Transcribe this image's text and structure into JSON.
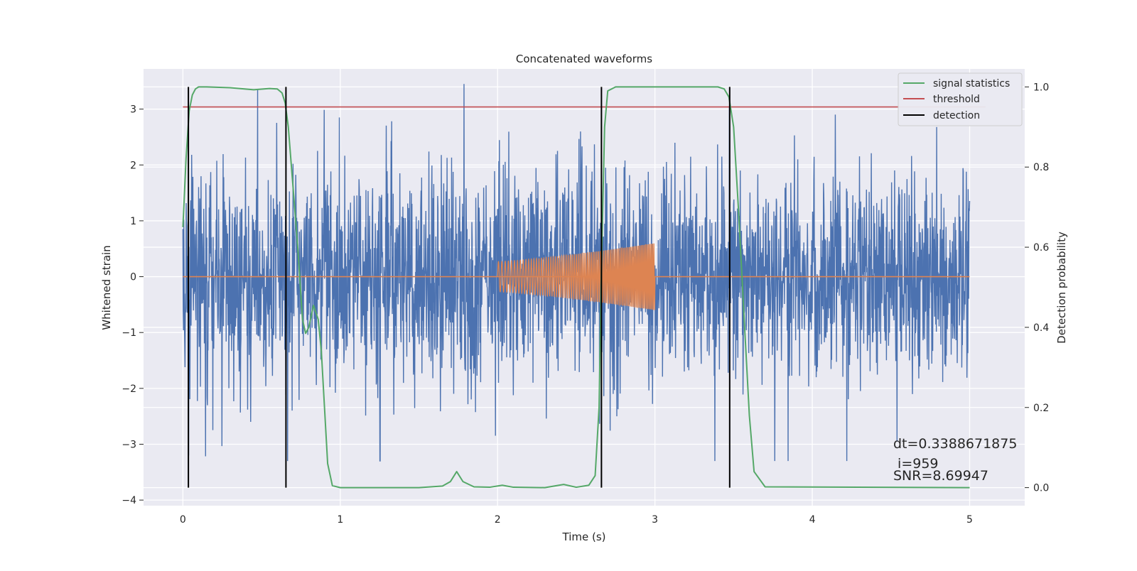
{
  "chart_data": {
    "type": "line",
    "title": "Concatenated waveforms",
    "xlabel": "Time (s)",
    "ylabel_left": "Whitened strain",
    "ylabel_right": "Detection probability",
    "xlim": [
      -0.25,
      5.35
    ],
    "ylim_left": [
      -4.1,
      3.72
    ],
    "ylim_right": [
      -0.045,
      1.045
    ],
    "xticks": [
      0,
      1,
      2,
      3,
      4,
      5
    ],
    "xtick_labels": [
      "0",
      "1",
      "2",
      "3",
      "4",
      "5"
    ],
    "yticks_left": [
      -4,
      -3,
      -2,
      -1,
      0,
      1,
      2,
      3
    ],
    "ytick_labels_left": [
      "−4",
      "−3",
      "−2",
      "−1",
      "0",
      "1",
      "2",
      "3"
    ],
    "yticks_right": [
      0.0,
      0.2,
      0.4,
      0.6,
      0.8,
      1.0
    ],
    "ytick_labels_right": [
      "0.0",
      "0.2",
      "0.4",
      "0.6",
      "0.8",
      "1.0"
    ],
    "grid": true,
    "legend_position": "top-right",
    "legend": [
      {
        "label": "signal statistics",
        "color": "#55a868"
      },
      {
        "label": "threshold",
        "color": "#c44e52"
      },
      {
        "label": "detection",
        "color": "#000000"
      }
    ],
    "series": [
      {
        "kind": "noise",
        "axis": "left",
        "color": "#4c72b0",
        "x_range": [
          0,
          5
        ],
        "typical_range": [
          -1.0,
          1.0
        ],
        "peak_range": [
          -3.3,
          3.45
        ]
      },
      {
        "kind": "injected_chirp",
        "axis": "left",
        "color": "#dd8452",
        "x_range": [
          2.0,
          3.0
        ],
        "amplitude_start": 0.27,
        "amplitude_end": 0.6,
        "flat_value": 0.0,
        "flat_range": [
          0,
          5
        ]
      },
      {
        "name": "signal statistics",
        "axis": "right",
        "color": "#55a868",
        "x": [
          0.0,
          0.02,
          0.04,
          0.06,
          0.08,
          0.1,
          0.15,
          0.3,
          0.45,
          0.55,
          0.6,
          0.63,
          0.65,
          0.67,
          0.7,
          0.73,
          0.76,
          0.78,
          0.8,
          0.83,
          0.86,
          0.88,
          0.9,
          0.92,
          0.95,
          1.0,
          1.5,
          1.65,
          1.7,
          1.74,
          1.78,
          1.85,
          1.95,
          2.03,
          2.1,
          2.3,
          2.42,
          2.5,
          2.58,
          2.62,
          2.645,
          2.66,
          2.68,
          2.7,
          2.75,
          3.0,
          3.4,
          3.44,
          3.47,
          3.5,
          3.53,
          3.57,
          3.6,
          3.63,
          3.7,
          5.0
        ],
        "y": [
          0.65,
          0.82,
          0.94,
          0.98,
          0.995,
          1.0,
          1.0,
          0.998,
          0.993,
          0.996,
          0.995,
          0.985,
          0.96,
          0.9,
          0.75,
          0.6,
          0.42,
          0.385,
          0.4,
          0.455,
          0.42,
          0.34,
          0.2,
          0.06,
          0.005,
          0.0,
          0.0,
          0.004,
          0.015,
          0.04,
          0.015,
          0.002,
          0.001,
          0.006,
          0.001,
          0.0,
          0.008,
          0.001,
          0.006,
          0.03,
          0.2,
          0.55,
          0.9,
          0.99,
          1.0,
          1.0,
          1.0,
          0.995,
          0.975,
          0.9,
          0.7,
          0.4,
          0.18,
          0.04,
          0.002,
          0.0
        ]
      },
      {
        "name": "threshold",
        "axis": "right",
        "color": "#c44e52",
        "x": [
          0,
          5.1
        ],
        "y": [
          0.95,
          0.95
        ]
      },
      {
        "name": "detection",
        "axis": "right",
        "color": "#000000",
        "x_positions": [
          0.035,
          0.655,
          2.66,
          3.475
        ],
        "y_range": [
          0.0,
          1.0
        ]
      }
    ],
    "annotations": [
      "dt=0.3388671875",
      " i=959",
      "SNR=8.69947"
    ]
  }
}
